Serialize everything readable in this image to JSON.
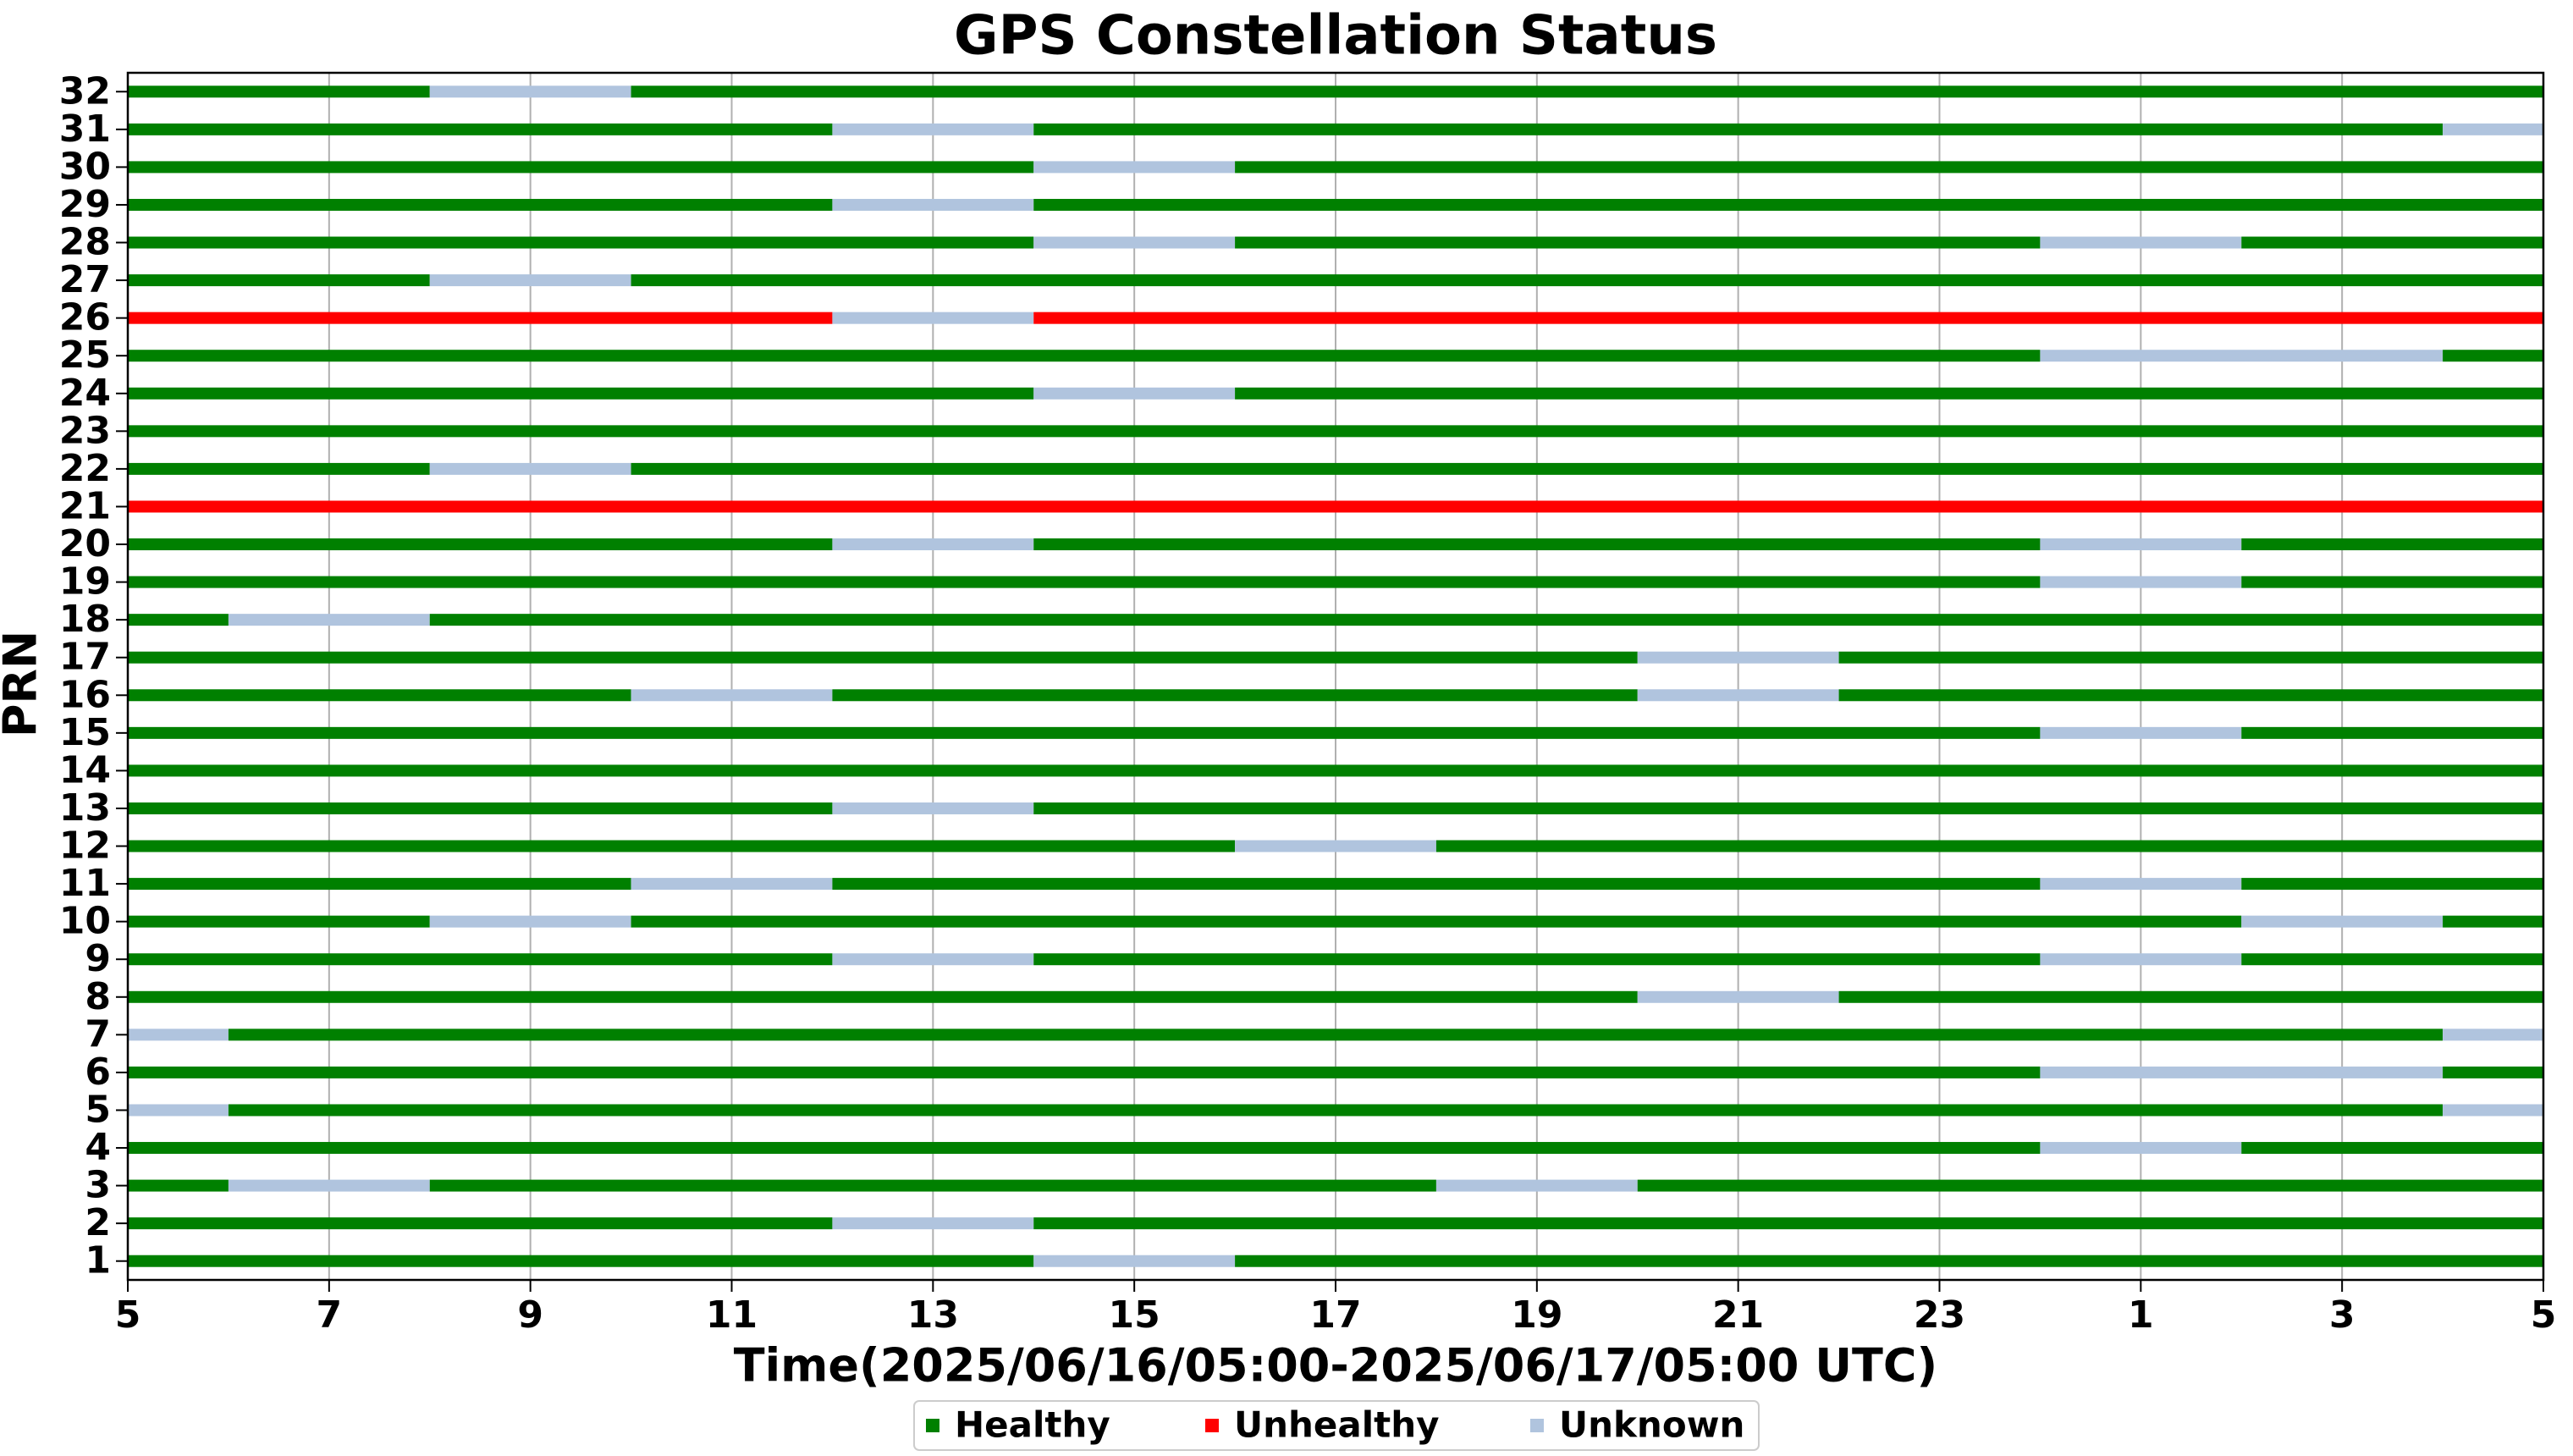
{
  "chart_data": {
    "type": "timeline",
    "title": "GPS Constellation Status",
    "x_label": "Time(2025/06/16/05:00-2025/06/17/05:00 UTC)",
    "y_label": "PRN",
    "xlim": [
      5,
      29
    ],
    "xticks": [
      5,
      7,
      9,
      11,
      13,
      15,
      17,
      19,
      21,
      23,
      {
        "value": 25,
        "label": "1"
      },
      {
        "value": 27,
        "label": "3"
      },
      {
        "value": 29,
        "label": "5"
      }
    ],
    "grid": true,
    "legend": "bottom",
    "series": [
      {
        "name": "Healthy",
        "color": "#008000"
      },
      {
        "name": "Unhealthy",
        "color": "#ff0000"
      },
      {
        "name": "Unknown",
        "color": "#b0c4de"
      }
    ],
    "categories": [
      1,
      2,
      3,
      4,
      5,
      6,
      7,
      8,
      9,
      10,
      11,
      12,
      13,
      14,
      15,
      16,
      17,
      18,
      19,
      20,
      21,
      22,
      23,
      24,
      25,
      26,
      27,
      28,
      29,
      30,
      31,
      32
    ],
    "segments": [
      [
        [
          5,
          14,
          "Healthy"
        ],
        [
          14,
          16,
          "Unknown"
        ],
        [
          16,
          29,
          "Healthy"
        ]
      ],
      [
        [
          5,
          12,
          "Healthy"
        ],
        [
          12,
          14,
          "Unknown"
        ],
        [
          14,
          29,
          "Healthy"
        ]
      ],
      [
        [
          5,
          6,
          "Healthy"
        ],
        [
          6,
          8,
          "Unknown"
        ],
        [
          8,
          18,
          "Healthy"
        ],
        [
          18,
          20,
          "Unknown"
        ],
        [
          20,
          29,
          "Healthy"
        ]
      ],
      [
        [
          5,
          24,
          "Healthy"
        ],
        [
          24,
          26,
          "Unknown"
        ],
        [
          26,
          29,
          "Healthy"
        ]
      ],
      [
        [
          5,
          6,
          "Unknown"
        ],
        [
          6,
          28,
          "Healthy"
        ],
        [
          28,
          29,
          "Unknown"
        ]
      ],
      [
        [
          5,
          24,
          "Healthy"
        ],
        [
          24,
          28,
          "Unknown"
        ],
        [
          28,
          29,
          "Healthy"
        ]
      ],
      [
        [
          5,
          6,
          "Unknown"
        ],
        [
          6,
          28,
          "Healthy"
        ],
        [
          28,
          29,
          "Unknown"
        ]
      ],
      [
        [
          5,
          20,
          "Healthy"
        ],
        [
          20,
          22,
          "Unknown"
        ],
        [
          22,
          29,
          "Healthy"
        ]
      ],
      [
        [
          5,
          12,
          "Healthy"
        ],
        [
          12,
          14,
          "Unknown"
        ],
        [
          14,
          24,
          "Healthy"
        ],
        [
          24,
          26,
          "Unknown"
        ],
        [
          26,
          29,
          "Healthy"
        ]
      ],
      [
        [
          5,
          8,
          "Healthy"
        ],
        [
          8,
          10,
          "Unknown"
        ],
        [
          10,
          26,
          "Healthy"
        ],
        [
          26,
          28,
          "Unknown"
        ],
        [
          28,
          29,
          "Healthy"
        ]
      ],
      [
        [
          5,
          10,
          "Healthy"
        ],
        [
          10,
          12,
          "Unknown"
        ],
        [
          12,
          24,
          "Healthy"
        ],
        [
          24,
          26,
          "Unknown"
        ],
        [
          26,
          29,
          "Healthy"
        ]
      ],
      [
        [
          5,
          16,
          "Healthy"
        ],
        [
          16,
          18,
          "Unknown"
        ],
        [
          18,
          29,
          "Healthy"
        ]
      ],
      [
        [
          5,
          12,
          "Healthy"
        ],
        [
          12,
          14,
          "Unknown"
        ],
        [
          14,
          29,
          "Healthy"
        ]
      ],
      [
        [
          5,
          29,
          "Healthy"
        ]
      ],
      [
        [
          5,
          24,
          "Healthy"
        ],
        [
          24,
          26,
          "Unknown"
        ],
        [
          26,
          29,
          "Healthy"
        ]
      ],
      [
        [
          5,
          10,
          "Healthy"
        ],
        [
          10,
          12,
          "Unknown"
        ],
        [
          12,
          20,
          "Healthy"
        ],
        [
          20,
          22,
          "Unknown"
        ],
        [
          22,
          29,
          "Healthy"
        ]
      ],
      [
        [
          5,
          20,
          "Healthy"
        ],
        [
          20,
          22,
          "Unknown"
        ],
        [
          22,
          29,
          "Healthy"
        ]
      ],
      [
        [
          5,
          6,
          "Healthy"
        ],
        [
          6,
          8,
          "Unknown"
        ],
        [
          8,
          29,
          "Healthy"
        ]
      ],
      [
        [
          5,
          24,
          "Healthy"
        ],
        [
          24,
          26,
          "Unknown"
        ],
        [
          26,
          29,
          "Healthy"
        ]
      ],
      [
        [
          5,
          12,
          "Healthy"
        ],
        [
          12,
          14,
          "Unknown"
        ],
        [
          14,
          24,
          "Healthy"
        ],
        [
          24,
          26,
          "Unknown"
        ],
        [
          26,
          29,
          "Healthy"
        ]
      ],
      [
        [
          5,
          29,
          "Unhealthy"
        ]
      ],
      [
        [
          5,
          8,
          "Healthy"
        ],
        [
          8,
          10,
          "Unknown"
        ],
        [
          10,
          29,
          "Healthy"
        ]
      ],
      [
        [
          5,
          29,
          "Healthy"
        ]
      ],
      [
        [
          5,
          14,
          "Healthy"
        ],
        [
          14,
          16,
          "Unknown"
        ],
        [
          16,
          29,
          "Healthy"
        ]
      ],
      [
        [
          5,
          24,
          "Healthy"
        ],
        [
          24,
          28,
          "Unknown"
        ],
        [
          28,
          29,
          "Healthy"
        ]
      ],
      [
        [
          5,
          12,
          "Unhealthy"
        ],
        [
          12,
          14,
          "Unknown"
        ],
        [
          14,
          29,
          "Unhealthy"
        ]
      ],
      [
        [
          5,
          8,
          "Healthy"
        ],
        [
          8,
          10,
          "Unknown"
        ],
        [
          10,
          29,
          "Healthy"
        ]
      ],
      [
        [
          5,
          14,
          "Healthy"
        ],
        [
          14,
          16,
          "Unknown"
        ],
        [
          16,
          24,
          "Healthy"
        ],
        [
          24,
          26,
          "Unknown"
        ],
        [
          26,
          29,
          "Healthy"
        ]
      ],
      [
        [
          5,
          12,
          "Healthy"
        ],
        [
          12,
          14,
          "Unknown"
        ],
        [
          14,
          29,
          "Healthy"
        ]
      ],
      [
        [
          5,
          14,
          "Healthy"
        ],
        [
          14,
          16,
          "Unknown"
        ],
        [
          16,
          29,
          "Healthy"
        ]
      ],
      [
        [
          5,
          12,
          "Healthy"
        ],
        [
          12,
          14,
          "Unknown"
        ],
        [
          14,
          28,
          "Healthy"
        ],
        [
          28,
          29,
          "Unknown"
        ]
      ],
      [
        [
          5,
          8,
          "Healthy"
        ],
        [
          8,
          10,
          "Unknown"
        ],
        [
          10,
          29,
          "Healthy"
        ]
      ]
    ]
  }
}
